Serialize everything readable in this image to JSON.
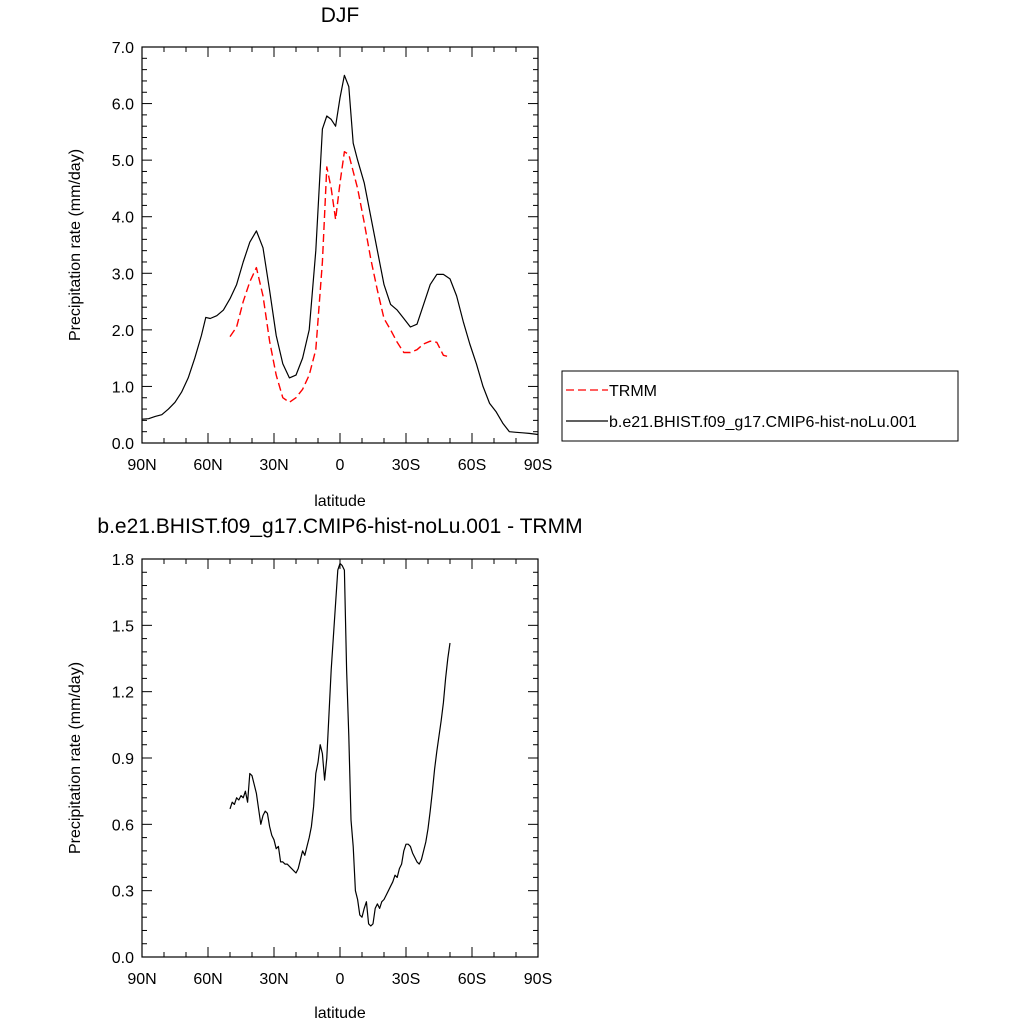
{
  "chart_data": [
    {
      "type": "line",
      "title": "DJF",
      "xlabel": "latitude",
      "ylabel": "Precipitation rate (mm/day)",
      "xlim": [
        90,
        -90
      ],
      "ylim": [
        0,
        7
      ],
      "x_ticks": [
        90,
        60,
        30,
        0,
        -30,
        -60,
        -90
      ],
      "x_tick_labels": [
        "90N",
        "60N",
        "30N",
        "0",
        "30S",
        "60S",
        "90S"
      ],
      "y_ticks": [
        0,
        1,
        2,
        3,
        4,
        5,
        6,
        7
      ],
      "y_tick_labels": [
        "0.0",
        "1.0",
        "2.0",
        "3.0",
        "4.0",
        "5.0",
        "6.0",
        "7.0"
      ],
      "grid": false,
      "legend": {
        "placement": "right",
        "entries": [
          {
            "label": "TRMM",
            "color": "#ff0000",
            "dash": "dashed"
          },
          {
            "label": "b.e21.BHIST.f09_g17.CMIP6-hist-noLu.001",
            "color": "#000000",
            "dash": "solid"
          }
        ]
      },
      "series": [
        {
          "name": "TRMM",
          "color": "#ff0000",
          "dash": "dashed",
          "x": [
            50,
            47,
            44,
            41,
            38,
            35,
            32,
            29,
            26,
            23,
            20,
            17,
            14,
            11,
            8,
            6,
            4,
            2,
            0,
            -2,
            -4,
            -6,
            -8,
            -11,
            -14,
            -17,
            -20,
            -23,
            -26,
            -29,
            -32,
            -35,
            -38,
            -41,
            -44,
            -47,
            -50
          ],
          "y": [
            1.88,
            2.05,
            2.5,
            2.85,
            3.1,
            2.6,
            1.8,
            1.2,
            0.8,
            0.72,
            0.8,
            0.95,
            1.2,
            1.65,
            3.2,
            4.88,
            4.5,
            3.95,
            4.6,
            5.15,
            5.1,
            4.8,
            4.5,
            3.9,
            3.25,
            2.7,
            2.2,
            2.0,
            1.78,
            1.6,
            1.6,
            1.65,
            1.75,
            1.8,
            1.78,
            1.55,
            1.52
          ]
        },
        {
          "name": "b.e21.BHIST.f09_g17.CMIP6-hist-noLu.001",
          "color": "#000000",
          "dash": "solid",
          "x": [
            90,
            87,
            84,
            81,
            78,
            75,
            72,
            69,
            66,
            63,
            61,
            59,
            56,
            53,
            50,
            47,
            44,
            41,
            38,
            35,
            32,
            29,
            26,
            23,
            20,
            17,
            14,
            11,
            8,
            6,
            4,
            2,
            0,
            -2,
            -4,
            -6,
            -8,
            -11,
            -14,
            -17,
            -20,
            -23,
            -26,
            -29,
            -32,
            -35,
            -38,
            -41,
            -44,
            -47,
            -50,
            -53,
            -56,
            -59,
            -62,
            -65,
            -68,
            -71,
            -74,
            -77,
            -80,
            -83,
            -86,
            -90
          ],
          "y": [
            0.42,
            0.43,
            0.47,
            0.5,
            0.6,
            0.72,
            0.9,
            1.15,
            1.5,
            1.9,
            2.22,
            2.2,
            2.25,
            2.35,
            2.55,
            2.8,
            3.2,
            3.55,
            3.75,
            3.45,
            2.7,
            1.9,
            1.4,
            1.15,
            1.2,
            1.5,
            2.0,
            3.4,
            5.55,
            5.78,
            5.72,
            5.6,
            6.1,
            6.5,
            6.3,
            5.3,
            5.0,
            4.6,
            4.0,
            3.4,
            2.8,
            2.45,
            2.35,
            2.2,
            2.05,
            2.1,
            2.45,
            2.8,
            2.98,
            2.98,
            2.9,
            2.6,
            2.15,
            1.75,
            1.4,
            1.0,
            0.7,
            0.55,
            0.35,
            0.2,
            0.19,
            0.18,
            0.17,
            0.15
          ]
        }
      ]
    },
    {
      "type": "line",
      "title": "b.e21.BHIST.f09_g17.CMIP6-hist-noLu.001 - TRMM",
      "xlabel": "latitude",
      "ylabel": "Precipitation rate (mm/day)",
      "xlim": [
        90,
        -90
      ],
      "ylim": [
        0,
        1.8
      ],
      "x_ticks": [
        90,
        60,
        30,
        0,
        -30,
        -60,
        -90
      ],
      "x_tick_labels": [
        "90N",
        "60N",
        "30N",
        "0",
        "30S",
        "60S",
        "90S"
      ],
      "y_ticks": [
        0,
        0.3,
        0.6,
        0.9,
        1.2,
        1.5,
        1.8
      ],
      "y_tick_labels": [
        "0.0",
        "0.3",
        "0.6",
        "0.9",
        "1.2",
        "1.5",
        "1.8"
      ],
      "grid": false,
      "series": [
        {
          "color": "#000000",
          "dash": "solid",
          "x": [
            50,
            49,
            48,
            47,
            46,
            45,
            44,
            43,
            42,
            41,
            40,
            39,
            38,
            37,
            36,
            35,
            34,
            33,
            32,
            31,
            30,
            29,
            28,
            27,
            26,
            25,
            24,
            23,
            22,
            21,
            20,
            19,
            18,
            17,
            16,
            15,
            14,
            13,
            12,
            11,
            10,
            9,
            8,
            7,
            6,
            5,
            4,
            3,
            2,
            1,
            0,
            -1,
            -2,
            -3,
            -4,
            -5,
            -6,
            -7,
            -8,
            -9,
            -10,
            -11,
            -12,
            -13,
            -14,
            -15,
            -16,
            -17,
            -18,
            -19,
            -20,
            -21,
            -22,
            -23,
            -24,
            -25,
            -26,
            -27,
            -28,
            -29,
            -30,
            -31,
            -32,
            -33,
            -34,
            -35,
            -36,
            -37,
            -38,
            -39,
            -40,
            -41,
            -42,
            -43,
            -44,
            -45,
            -46,
            -47,
            -48,
            -49,
            -50
          ],
          "y": [
            0.67,
            0.7,
            0.69,
            0.72,
            0.71,
            0.73,
            0.72,
            0.75,
            0.7,
            0.83,
            0.82,
            0.78,
            0.74,
            0.67,
            0.6,
            0.64,
            0.66,
            0.65,
            0.59,
            0.55,
            0.53,
            0.49,
            0.5,
            0.43,
            0.43,
            0.42,
            0.42,
            0.41,
            0.4,
            0.39,
            0.38,
            0.4,
            0.44,
            0.48,
            0.46,
            0.5,
            0.54,
            0.59,
            0.68,
            0.83,
            0.88,
            0.96,
            0.92,
            0.8,
            0.9,
            1.1,
            1.3,
            1.45,
            1.6,
            1.75,
            1.78,
            1.77,
            1.75,
            1.3,
            1.0,
            0.62,
            0.5,
            0.3,
            0.26,
            0.19,
            0.18,
            0.22,
            0.25,
            0.15,
            0.14,
            0.15,
            0.22,
            0.24,
            0.22,
            0.25,
            0.26,
            0.28,
            0.3,
            0.32,
            0.34,
            0.37,
            0.36,
            0.4,
            0.42,
            0.48,
            0.51,
            0.51,
            0.5,
            0.47,
            0.45,
            0.43,
            0.42,
            0.44,
            0.48,
            0.52,
            0.58,
            0.66,
            0.75,
            0.85,
            0.93,
            1.0,
            1.07,
            1.15,
            1.26,
            1.35,
            1.42
          ]
        }
      ]
    }
  ]
}
